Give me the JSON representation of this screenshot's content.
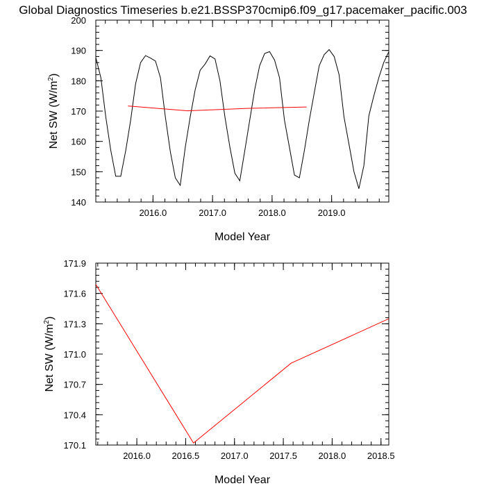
{
  "title": "Global Diagnostics Timeseries b.e21.BSSP370cmip6.f09_g17.pacemaker_pacific.003",
  "colors": {
    "monthly": "#000000",
    "annual": "#ff0000",
    "axes": "#000000"
  },
  "chart_data": [
    {
      "type": "line",
      "name": "monthly-and-annual",
      "xlabel": "Model Year",
      "ylabel_main": "Net SW (W/m",
      "ylabel_sup": "2",
      "ylabel_end": ")",
      "xlim": [
        2015.04,
        2019.96
      ],
      "ylim": [
        140,
        200
      ],
      "xticks": [
        2016.0,
        2017.0,
        2018.0,
        2019.0
      ],
      "xtick_labels": [
        "2016.0",
        "2017.0",
        "2018.0",
        "2019.0"
      ],
      "yticks": [
        140,
        150,
        160,
        170,
        180,
        190,
        200
      ],
      "ytick_labels": [
        "140",
        "150",
        "160",
        "170",
        "180",
        "190",
        "200"
      ],
      "series": [
        {
          "name": "monthly",
          "color": "#000000",
          "x": [
            2015.042,
            2015.125,
            2015.208,
            2015.292,
            2015.375,
            2015.458,
            2015.542,
            2015.625,
            2015.708,
            2015.792,
            2015.875,
            2015.958,
            2016.042,
            2016.125,
            2016.208,
            2016.292,
            2016.375,
            2016.458,
            2016.542,
            2016.625,
            2016.708,
            2016.792,
            2016.875,
            2016.958,
            2017.042,
            2017.125,
            2017.208,
            2017.292,
            2017.375,
            2017.458,
            2017.542,
            2017.625,
            2017.708,
            2017.792,
            2017.875,
            2017.958,
            2018.042,
            2018.125,
            2018.208,
            2018.292,
            2018.375,
            2018.458,
            2018.542,
            2018.625,
            2018.708,
            2018.792,
            2018.875,
            2018.958,
            2019.042,
            2019.125,
            2019.208,
            2019.292,
            2019.375,
            2019.458,
            2019.542,
            2019.625,
            2019.708,
            2019.792,
            2019.875,
            2019.958
          ],
          "values": [
            187.5,
            181.0,
            168.0,
            157.0,
            148.5,
            148.5,
            157.0,
            167.0,
            179.0,
            186.0,
            188.3,
            187.5,
            186.5,
            181.0,
            168.0,
            156.5,
            148.0,
            145.5,
            158.0,
            168.0,
            177.0,
            183.5,
            185.5,
            188.2,
            187.2,
            180.0,
            168.0,
            158.0,
            149.5,
            147.0,
            157.0,
            167.0,
            177.0,
            185.0,
            189.0,
            189.6,
            186.8,
            181.0,
            167.0,
            158.0,
            148.9,
            148.0,
            157.0,
            167.0,
            176.0,
            185.0,
            188.6,
            190.3,
            188.0,
            182.0,
            168.0,
            159.0,
            150.0,
            144.4,
            152.0,
            168.5,
            175.0,
            181.0,
            186.0,
            189.5
          ]
        },
        {
          "name": "annual",
          "color": "#ff0000",
          "x": [
            2015.58,
            2016.58,
            2017.58,
            2018.58
          ],
          "values": [
            171.7,
            170.1,
            170.9,
            171.35
          ]
        }
      ]
    },
    {
      "type": "line",
      "name": "annual-zoom",
      "xlabel": "Model Year",
      "ylabel_main": "Net SW (W/m",
      "ylabel_sup": "2",
      "ylabel_end": ")",
      "xlim": [
        2015.58,
        2018.58
      ],
      "ylim": [
        170.1,
        171.9
      ],
      "xticks": [
        2016.0,
        2016.5,
        2017.0,
        2017.5,
        2018.0,
        2018.5
      ],
      "xtick_labels": [
        "2016.0",
        "2016.5",
        "2017.0",
        "2017.5",
        "2018.0",
        "2018.5"
      ],
      "yticks": [
        170.1,
        170.4,
        170.7,
        171.0,
        171.3,
        171.6,
        171.9
      ],
      "ytick_labels": [
        "170.1",
        "170.4",
        "170.7",
        "171.0",
        "171.3",
        "171.6",
        "171.9"
      ],
      "series": [
        {
          "name": "annual",
          "color": "#ff0000",
          "x": [
            2015.58,
            2016.58,
            2017.58,
            2018.58
          ],
          "values": [
            171.69,
            170.12,
            170.91,
            171.35
          ]
        }
      ]
    }
  ]
}
